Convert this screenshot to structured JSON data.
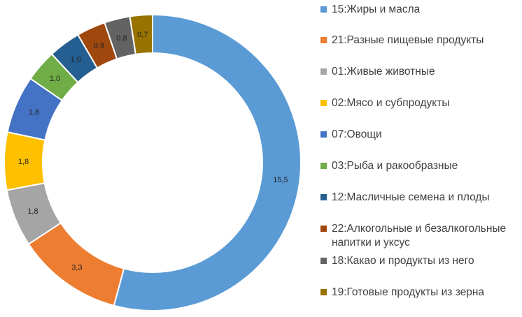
{
  "chart_data": {
    "type": "pie",
    "variant": "donut",
    "legend_position": "right",
    "series": [
      {
        "label": "15:Жиры и масла",
        "value": 15.5,
        "value_label": "15,5",
        "color": "#5B9BD5"
      },
      {
        "label": "21:Разные пищевые продукты",
        "value": 3.3,
        "value_label": "3,3",
        "color": "#ED7D31"
      },
      {
        "label": "01:Живые животные",
        "value": 1.8,
        "value_label": "1,8",
        "color": "#A5A5A5"
      },
      {
        "label": "02:Мясо и субпродукты",
        "value": 1.8,
        "value_label": "1,8",
        "color": "#FFC000"
      },
      {
        "label": "07:Овощи",
        "value": 1.8,
        "value_label": "1,8",
        "color": "#4472C4"
      },
      {
        "label": "03:Рыба и ракообразные",
        "value": 1.0,
        "value_label": "1,0",
        "color": "#70AD47"
      },
      {
        "label": "12:Масличные семена и плоды",
        "value": 1.0,
        "value_label": "1,0",
        "color": "#255E91"
      },
      {
        "label": "22:Алкогольные и безалкогольные напитки и уксус",
        "value": 0.9,
        "value_label": "0,9",
        "color": "#9E480E"
      },
      {
        "label": "18:Какао и продукты из него",
        "value": 0.8,
        "value_label": "0,8",
        "color": "#636363"
      },
      {
        "label": "19:Готовые продукты из зерна",
        "value": 0.7,
        "value_label": "0,7",
        "color": "#997300"
      }
    ]
  }
}
